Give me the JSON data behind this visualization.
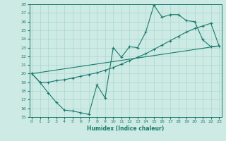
{
  "xlabel": "Humidex (Indice chaleur)",
  "bg_color": "#cdeae4",
  "line_color": "#1a7a6e",
  "grid_color": "#a8d8d0",
  "xmin": 0,
  "xmax": 23,
  "ymin": 15,
  "ymax": 28,
  "line1_x": [
    0,
    1,
    2,
    3,
    4,
    5,
    6,
    7,
    8,
    9,
    10,
    11,
    12,
    13,
    14,
    15,
    16,
    17,
    18,
    19,
    20,
    21,
    22,
    23
  ],
  "line1_y": [
    20.0,
    19.0,
    17.8,
    16.7,
    15.8,
    15.7,
    15.5,
    15.3,
    18.7,
    17.2,
    23.0,
    21.9,
    23.1,
    23.0,
    24.8,
    27.9,
    26.5,
    26.8,
    26.8,
    26.1,
    26.0,
    23.9,
    23.1,
    23.2
  ],
  "line2_x": [
    0,
    1,
    2,
    3,
    4,
    5,
    6,
    7,
    8,
    9,
    10,
    11,
    12,
    13,
    14,
    15,
    16,
    17,
    18,
    19,
    20,
    21,
    22,
    23
  ],
  "line2_y": [
    20.0,
    19.0,
    19.0,
    19.2,
    19.3,
    19.5,
    19.7,
    19.9,
    20.1,
    20.4,
    20.7,
    21.1,
    21.5,
    21.9,
    22.3,
    22.8,
    23.3,
    23.8,
    24.3,
    24.8,
    25.2,
    25.5,
    25.8,
    23.2
  ],
  "line3_x": [
    0,
    23
  ],
  "line3_y": [
    20.0,
    23.2
  ]
}
